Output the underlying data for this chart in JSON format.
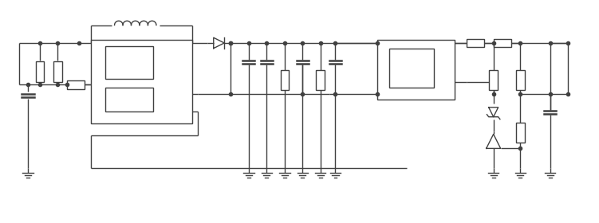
{
  "bg_color": "#ffffff",
  "line_color": "#404040",
  "lw": 1.0,
  "figsize": [
    7.51,
    2.8
  ],
  "dpi": 100,
  "xlim": [
    0,
    100
  ],
  "ylim": [
    0,
    37
  ]
}
